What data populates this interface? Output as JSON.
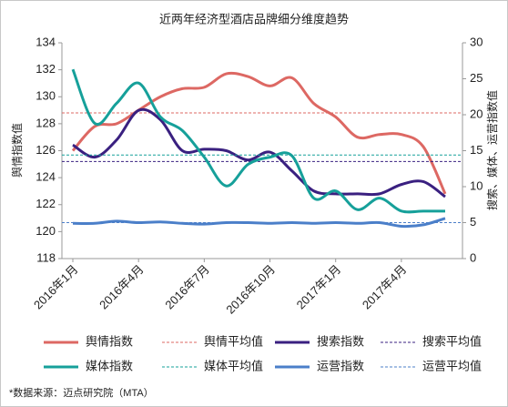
{
  "chart_data": {
    "type": "line",
    "title": "近两年经济型酒店品牌细分维度趋势",
    "y_label": "舆情指数值",
    "y2_label": "搜索、媒体、运营指数值",
    "source": "*数据来源：迈点研究院（MTA）",
    "categories": [
      "2016年1月",
      null,
      null,
      "2016年4月",
      null,
      null,
      "2016年7月",
      null,
      null,
      "2016年10月",
      null,
      null,
      "2017年1月",
      null,
      null,
      "2017年4月",
      null,
      null
    ],
    "ylim": [
      118,
      134
    ],
    "yticks": [
      118,
      120,
      122,
      124,
      126,
      128,
      130,
      132,
      134
    ],
    "y2lim": [
      0,
      30
    ],
    "y2ticks": [
      0,
      5,
      10,
      15,
      20,
      25,
      30
    ],
    "grid": false,
    "series": [
      {
        "name": "舆情指数",
        "color": "#dd6863",
        "axis": "y",
        "values": [
          126.0,
          127.8,
          128.0,
          129.0,
          130.0,
          130.6,
          130.7,
          131.7,
          131.5,
          130.8,
          131.4,
          129.5,
          128.5,
          127.0,
          127.2,
          127.2,
          126.3,
          122.8
        ]
      },
      {
        "name": "舆情平均值",
        "color": "#dd6863",
        "axis": "y",
        "dashed": true,
        "value": 128.8
      },
      {
        "name": "搜索指数",
        "color": "#3a2080",
        "axis": "y2",
        "values": [
          15.8,
          14.1,
          16.5,
          20.6,
          19.3,
          15.0,
          15.2,
          15.0,
          13.7,
          14.8,
          12.2,
          9.4,
          9.0,
          9.0,
          9.0,
          10.3,
          10.7,
          8.6
        ]
      },
      {
        "name": "搜索平均值",
        "color": "#3a2080",
        "axis": "y2",
        "dashed": true,
        "value": 13.5
      },
      {
        "name": "媒体指数",
        "color": "#16a09a",
        "axis": "y2",
        "values": [
          26.3,
          18.8,
          21.6,
          24.4,
          19.7,
          17.8,
          14.1,
          10.1,
          13.1,
          14.1,
          14.3,
          8.4,
          9.4,
          6.8,
          8.4,
          6.6,
          6.6,
          6.6
        ]
      },
      {
        "name": "媒体平均值",
        "color": "#16a09a",
        "axis": "y2",
        "dashed": true,
        "value": 14.4
      },
      {
        "name": "运营指数",
        "color": "#4b7fc9",
        "axis": "y2",
        "values": [
          4.9,
          4.9,
          5.2,
          5.0,
          5.1,
          4.9,
          4.8,
          5.0,
          5.0,
          4.9,
          5.0,
          4.9,
          5.0,
          4.9,
          5.0,
          4.5,
          4.7,
          5.6
        ]
      },
      {
        "name": "运营平均值",
        "color": "#4b7fc9",
        "axis": "y2",
        "dashed": true,
        "value": 5.0
      }
    ]
  }
}
